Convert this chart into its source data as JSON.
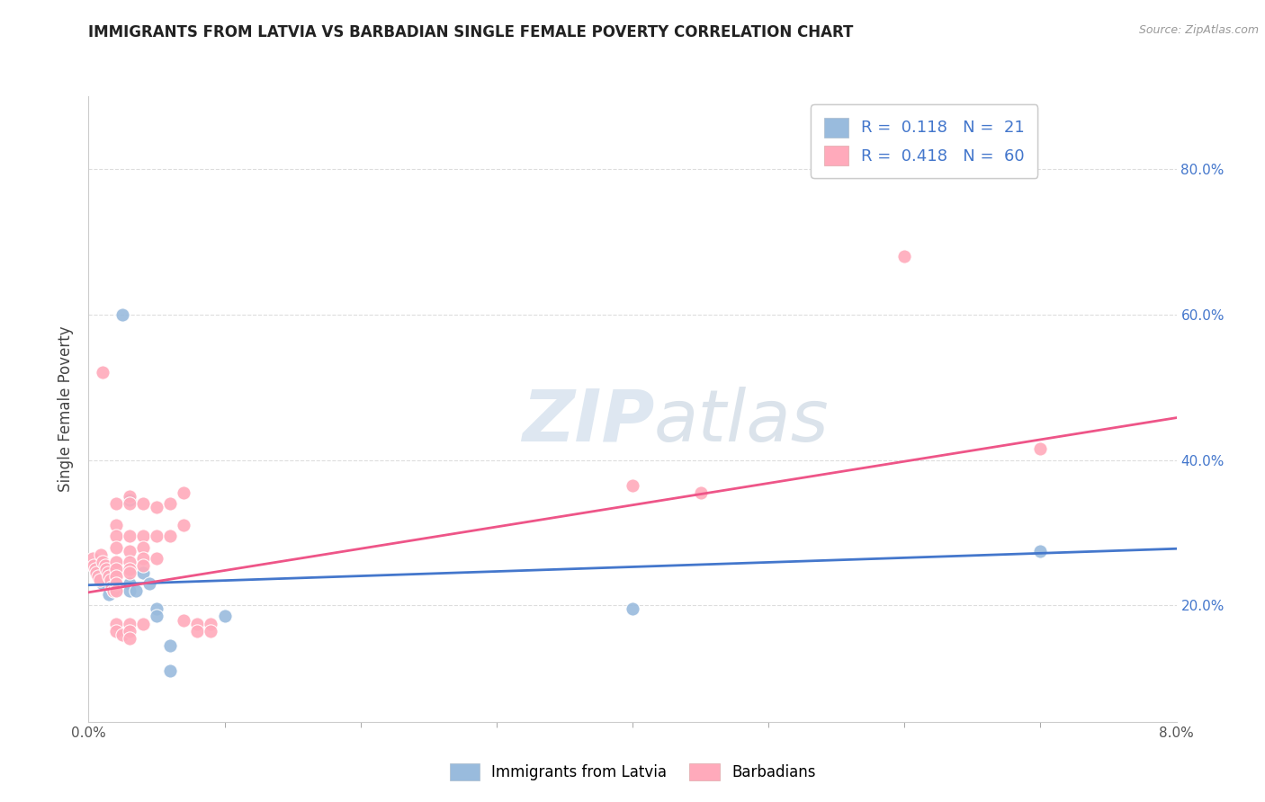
{
  "title": "IMMIGRANTS FROM LATVIA VS BARBADIAN SINGLE FEMALE POVERTY CORRELATION CHART",
  "source": "Source: ZipAtlas.com",
  "ylabel": "Single Female Poverty",
  "right_ytick_vals": [
    0.2,
    0.4,
    0.6,
    0.8
  ],
  "xlim": [
    0.0,
    0.08
  ],
  "ylim": [
    0.04,
    0.9
  ],
  "legend_label1": "R =  0.118   N =  21",
  "legend_label2": "R =  0.418   N =  60",
  "legend_bottom_label1": "Immigrants from Latvia",
  "legend_bottom_label2": "Barbadians",
  "blue_color": "#99BBDD",
  "pink_color": "#FFAABB",
  "blue_line_color": "#4477CC",
  "pink_line_color": "#EE5588",
  "blue_scatter": [
    [
      0.0005,
      0.25
    ],
    [
      0.0008,
      0.24
    ],
    [
      0.001,
      0.23
    ],
    [
      0.001,
      0.245
    ],
    [
      0.0015,
      0.215
    ],
    [
      0.002,
      0.225
    ],
    [
      0.002,
      0.22
    ],
    [
      0.0025,
      0.6
    ],
    [
      0.003,
      0.345
    ],
    [
      0.003,
      0.23
    ],
    [
      0.003,
      0.22
    ],
    [
      0.0035,
      0.22
    ],
    [
      0.004,
      0.245
    ],
    [
      0.0045,
      0.23
    ],
    [
      0.005,
      0.195
    ],
    [
      0.005,
      0.185
    ],
    [
      0.006,
      0.145
    ],
    [
      0.006,
      0.11
    ],
    [
      0.01,
      0.185
    ],
    [
      0.04,
      0.195
    ],
    [
      0.07,
      0.275
    ]
  ],
  "pink_scatter": [
    [
      0.0003,
      0.265
    ],
    [
      0.0004,
      0.255
    ],
    [
      0.0005,
      0.25
    ],
    [
      0.0006,
      0.245
    ],
    [
      0.0007,
      0.24
    ],
    [
      0.0008,
      0.235
    ],
    [
      0.0009,
      0.27
    ],
    [
      0.001,
      0.26
    ],
    [
      0.001,
      0.52
    ],
    [
      0.0012,
      0.255
    ],
    [
      0.0013,
      0.25
    ],
    [
      0.0014,
      0.245
    ],
    [
      0.0015,
      0.24
    ],
    [
      0.0016,
      0.235
    ],
    [
      0.0017,
      0.225
    ],
    [
      0.0018,
      0.22
    ],
    [
      0.002,
      0.34
    ],
    [
      0.002,
      0.31
    ],
    [
      0.002,
      0.295
    ],
    [
      0.002,
      0.28
    ],
    [
      0.002,
      0.26
    ],
    [
      0.002,
      0.25
    ],
    [
      0.002,
      0.24
    ],
    [
      0.002,
      0.23
    ],
    [
      0.002,
      0.22
    ],
    [
      0.002,
      0.175
    ],
    [
      0.002,
      0.165
    ],
    [
      0.0025,
      0.16
    ],
    [
      0.003,
      0.35
    ],
    [
      0.003,
      0.34
    ],
    [
      0.003,
      0.295
    ],
    [
      0.003,
      0.275
    ],
    [
      0.003,
      0.26
    ],
    [
      0.003,
      0.25
    ],
    [
      0.003,
      0.245
    ],
    [
      0.003,
      0.175
    ],
    [
      0.003,
      0.165
    ],
    [
      0.003,
      0.155
    ],
    [
      0.004,
      0.34
    ],
    [
      0.004,
      0.295
    ],
    [
      0.004,
      0.28
    ],
    [
      0.004,
      0.265
    ],
    [
      0.004,
      0.255
    ],
    [
      0.004,
      0.175
    ],
    [
      0.005,
      0.335
    ],
    [
      0.005,
      0.295
    ],
    [
      0.005,
      0.265
    ],
    [
      0.006,
      0.34
    ],
    [
      0.006,
      0.295
    ],
    [
      0.007,
      0.355
    ],
    [
      0.007,
      0.31
    ],
    [
      0.007,
      0.18
    ],
    [
      0.008,
      0.175
    ],
    [
      0.008,
      0.165
    ],
    [
      0.009,
      0.175
    ],
    [
      0.009,
      0.165
    ],
    [
      0.04,
      0.365
    ],
    [
      0.045,
      0.355
    ],
    [
      0.06,
      0.68
    ],
    [
      0.07,
      0.415
    ]
  ],
  "blue_line_x": [
    0.0,
    0.08
  ],
  "blue_line_y": [
    0.228,
    0.278
  ],
  "pink_line_x": [
    0.0,
    0.08
  ],
  "pink_line_y": [
    0.218,
    0.458
  ],
  "watermark_zip": "ZIP",
  "watermark_atlas": "atlas",
  "background_color": "#FFFFFF",
  "grid_color": "#DDDDDD"
}
